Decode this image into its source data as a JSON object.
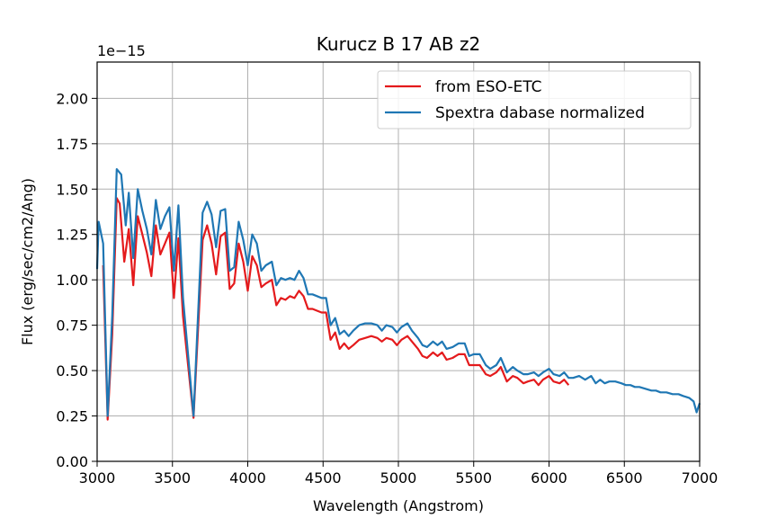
{
  "chart_data": {
    "type": "line",
    "title": "Kurucz B 17 AB z2",
    "xlabel": "Wavelength (Angstrom)",
    "ylabel": "Flux (erg/sec/cm2/Ang)",
    "y_offset_label": "1e−15",
    "xlim": [
      3000,
      7000
    ],
    "ylim": [
      0,
      2.2
    ],
    "x_ticks": [
      3000,
      3500,
      4000,
      4500,
      5000,
      5500,
      6000,
      6500,
      7000
    ],
    "y_ticks": [
      0.0,
      0.25,
      0.5,
      0.75,
      1.0,
      1.25,
      1.5,
      1.75,
      2.0
    ],
    "x_tick_labels": [
      "3000",
      "3500",
      "4000",
      "4500",
      "5000",
      "5500",
      "6000",
      "6500",
      "7000"
    ],
    "y_tick_labels": [
      "0.00",
      "0.25",
      "0.50",
      "0.75",
      "1.00",
      "1.25",
      "1.50",
      "1.75",
      "2.00"
    ],
    "grid": true,
    "legend_position": "top-right",
    "series": [
      {
        "name": "from ESO-ETC",
        "color": "#e41a1c",
        "points": [
          [
            3040,
            1.08
          ],
          [
            3070,
            0.23
          ],
          [
            3100,
            0.7
          ],
          [
            3130,
            1.45
          ],
          [
            3150,
            1.42
          ],
          [
            3180,
            1.1
          ],
          [
            3210,
            1.28
          ],
          [
            3240,
            0.97
          ],
          [
            3270,
            1.35
          ],
          [
            3300,
            1.25
          ],
          [
            3330,
            1.15
          ],
          [
            3360,
            1.02
          ],
          [
            3390,
            1.3
          ],
          [
            3420,
            1.14
          ],
          [
            3450,
            1.2
          ],
          [
            3480,
            1.26
          ],
          [
            3510,
            0.9
          ],
          [
            3540,
            1.23
          ],
          [
            3570,
            0.8
          ],
          [
            3640,
            0.24
          ],
          [
            3700,
            1.22
          ],
          [
            3730,
            1.3
          ],
          [
            3760,
            1.2
          ],
          [
            3790,
            1.03
          ],
          [
            3820,
            1.24
          ],
          [
            3850,
            1.26
          ],
          [
            3880,
            0.95
          ],
          [
            3910,
            0.98
          ],
          [
            3940,
            1.2
          ],
          [
            3970,
            1.1
          ],
          [
            4000,
            0.94
          ],
          [
            4030,
            1.13
          ],
          [
            4060,
            1.08
          ],
          [
            4090,
            0.96
          ],
          [
            4120,
            0.98
          ],
          [
            4160,
            1.0
          ],
          [
            4190,
            0.86
          ],
          [
            4220,
            0.9
          ],
          [
            4250,
            0.89
          ],
          [
            4280,
            0.91
          ],
          [
            4310,
            0.9
          ],
          [
            4340,
            0.94
          ],
          [
            4370,
            0.91
          ],
          [
            4400,
            0.84
          ],
          [
            4430,
            0.84
          ],
          [
            4460,
            0.83
          ],
          [
            4490,
            0.82
          ],
          [
            4520,
            0.82
          ],
          [
            4550,
            0.67
          ],
          [
            4580,
            0.71
          ],
          [
            4610,
            0.62
          ],
          [
            4640,
            0.65
          ],
          [
            4670,
            0.62
          ],
          [
            4700,
            0.64
          ],
          [
            4740,
            0.67
          ],
          [
            4780,
            0.68
          ],
          [
            4820,
            0.69
          ],
          [
            4860,
            0.68
          ],
          [
            4890,
            0.66
          ],
          [
            4920,
            0.68
          ],
          [
            4960,
            0.67
          ],
          [
            4990,
            0.64
          ],
          [
            5020,
            0.67
          ],
          [
            5060,
            0.69
          ],
          [
            5090,
            0.66
          ],
          [
            5130,
            0.62
          ],
          [
            5160,
            0.58
          ],
          [
            5190,
            0.57
          ],
          [
            5230,
            0.6
          ],
          [
            5260,
            0.58
          ],
          [
            5290,
            0.6
          ],
          [
            5320,
            0.56
          ],
          [
            5360,
            0.57
          ],
          [
            5400,
            0.59
          ],
          [
            5440,
            0.59
          ],
          [
            5470,
            0.53
          ],
          [
            5500,
            0.53
          ],
          [
            5540,
            0.53
          ],
          [
            5580,
            0.48
          ],
          [
            5610,
            0.47
          ],
          [
            5650,
            0.49
          ],
          [
            5680,
            0.52
          ],
          [
            5720,
            0.44
          ],
          [
            5760,
            0.47
          ],
          [
            5790,
            0.46
          ],
          [
            5830,
            0.43
          ],
          [
            5860,
            0.44
          ],
          [
            5900,
            0.45
          ],
          [
            5930,
            0.42
          ],
          [
            5960,
            0.45
          ],
          [
            6000,
            0.47
          ],
          [
            6030,
            0.44
          ],
          [
            6070,
            0.43
          ],
          [
            6100,
            0.45
          ],
          [
            6130,
            0.42
          ]
        ]
      },
      {
        "name": "Spextra dabase normalized",
        "color": "#1f77b4",
        "points": [
          [
            3000,
            1.06
          ],
          [
            3010,
            1.32
          ],
          [
            3040,
            1.2
          ],
          [
            3070,
            0.25
          ],
          [
            3100,
            0.8
          ],
          [
            3130,
            1.61
          ],
          [
            3160,
            1.58
          ],
          [
            3190,
            1.3
          ],
          [
            3210,
            1.48
          ],
          [
            3240,
            1.12
          ],
          [
            3270,
            1.5
          ],
          [
            3300,
            1.38
          ],
          [
            3330,
            1.28
          ],
          [
            3360,
            1.14
          ],
          [
            3390,
            1.44
          ],
          [
            3420,
            1.28
          ],
          [
            3450,
            1.35
          ],
          [
            3480,
            1.4
          ],
          [
            3510,
            1.05
          ],
          [
            3540,
            1.41
          ],
          [
            3570,
            0.9
          ],
          [
            3640,
            0.25
          ],
          [
            3700,
            1.37
          ],
          [
            3730,
            1.43
          ],
          [
            3760,
            1.36
          ],
          [
            3790,
            1.18
          ],
          [
            3820,
            1.38
          ],
          [
            3850,
            1.39
          ],
          [
            3880,
            1.05
          ],
          [
            3910,
            1.07
          ],
          [
            3940,
            1.32
          ],
          [
            3970,
            1.22
          ],
          [
            4000,
            1.08
          ],
          [
            4030,
            1.25
          ],
          [
            4060,
            1.2
          ],
          [
            4090,
            1.05
          ],
          [
            4120,
            1.08
          ],
          [
            4160,
            1.1
          ],
          [
            4190,
            0.97
          ],
          [
            4220,
            1.01
          ],
          [
            4250,
            1.0
          ],
          [
            4280,
            1.01
          ],
          [
            4310,
            1.0
          ],
          [
            4340,
            1.05
          ],
          [
            4370,
            1.01
          ],
          [
            4400,
            0.92
          ],
          [
            4430,
            0.92
          ],
          [
            4460,
            0.91
          ],
          [
            4490,
            0.9
          ],
          [
            4520,
            0.9
          ],
          [
            4550,
            0.75
          ],
          [
            4580,
            0.79
          ],
          [
            4610,
            0.7
          ],
          [
            4640,
            0.72
          ],
          [
            4670,
            0.69
          ],
          [
            4700,
            0.72
          ],
          [
            4740,
            0.75
          ],
          [
            4780,
            0.76
          ],
          [
            4820,
            0.76
          ],
          [
            4860,
            0.75
          ],
          [
            4890,
            0.72
          ],
          [
            4920,
            0.75
          ],
          [
            4960,
            0.74
          ],
          [
            4990,
            0.71
          ],
          [
            5020,
            0.74
          ],
          [
            5060,
            0.76
          ],
          [
            5090,
            0.72
          ],
          [
            5130,
            0.68
          ],
          [
            5160,
            0.64
          ],
          [
            5190,
            0.63
          ],
          [
            5230,
            0.66
          ],
          [
            5260,
            0.64
          ],
          [
            5290,
            0.66
          ],
          [
            5320,
            0.62
          ],
          [
            5360,
            0.63
          ],
          [
            5400,
            0.65
          ],
          [
            5440,
            0.65
          ],
          [
            5470,
            0.58
          ],
          [
            5500,
            0.59
          ],
          [
            5540,
            0.59
          ],
          [
            5580,
            0.53
          ],
          [
            5610,
            0.51
          ],
          [
            5650,
            0.53
          ],
          [
            5680,
            0.57
          ],
          [
            5720,
            0.49
          ],
          [
            5760,
            0.52
          ],
          [
            5790,
            0.5
          ],
          [
            5830,
            0.48
          ],
          [
            5860,
            0.48
          ],
          [
            5900,
            0.49
          ],
          [
            5930,
            0.47
          ],
          [
            5960,
            0.49
          ],
          [
            6000,
            0.51
          ],
          [
            6030,
            0.48
          ],
          [
            6070,
            0.47
          ],
          [
            6100,
            0.49
          ],
          [
            6130,
            0.46
          ],
          [
            6160,
            0.46
          ],
          [
            6200,
            0.47
          ],
          [
            6240,
            0.45
          ],
          [
            6280,
            0.47
          ],
          [
            6310,
            0.43
          ],
          [
            6340,
            0.45
          ],
          [
            6370,
            0.43
          ],
          [
            6400,
            0.44
          ],
          [
            6440,
            0.44
          ],
          [
            6480,
            0.43
          ],
          [
            6510,
            0.42
          ],
          [
            6540,
            0.42
          ],
          [
            6570,
            0.41
          ],
          [
            6600,
            0.41
          ],
          [
            6640,
            0.4
          ],
          [
            6680,
            0.39
          ],
          [
            6710,
            0.39
          ],
          [
            6740,
            0.38
          ],
          [
            6780,
            0.38
          ],
          [
            6820,
            0.37
          ],
          [
            6860,
            0.37
          ],
          [
            6890,
            0.36
          ],
          [
            6930,
            0.35
          ],
          [
            6960,
            0.33
          ],
          [
            6980,
            0.27
          ],
          [
            7000,
            0.32
          ]
        ]
      }
    ]
  }
}
